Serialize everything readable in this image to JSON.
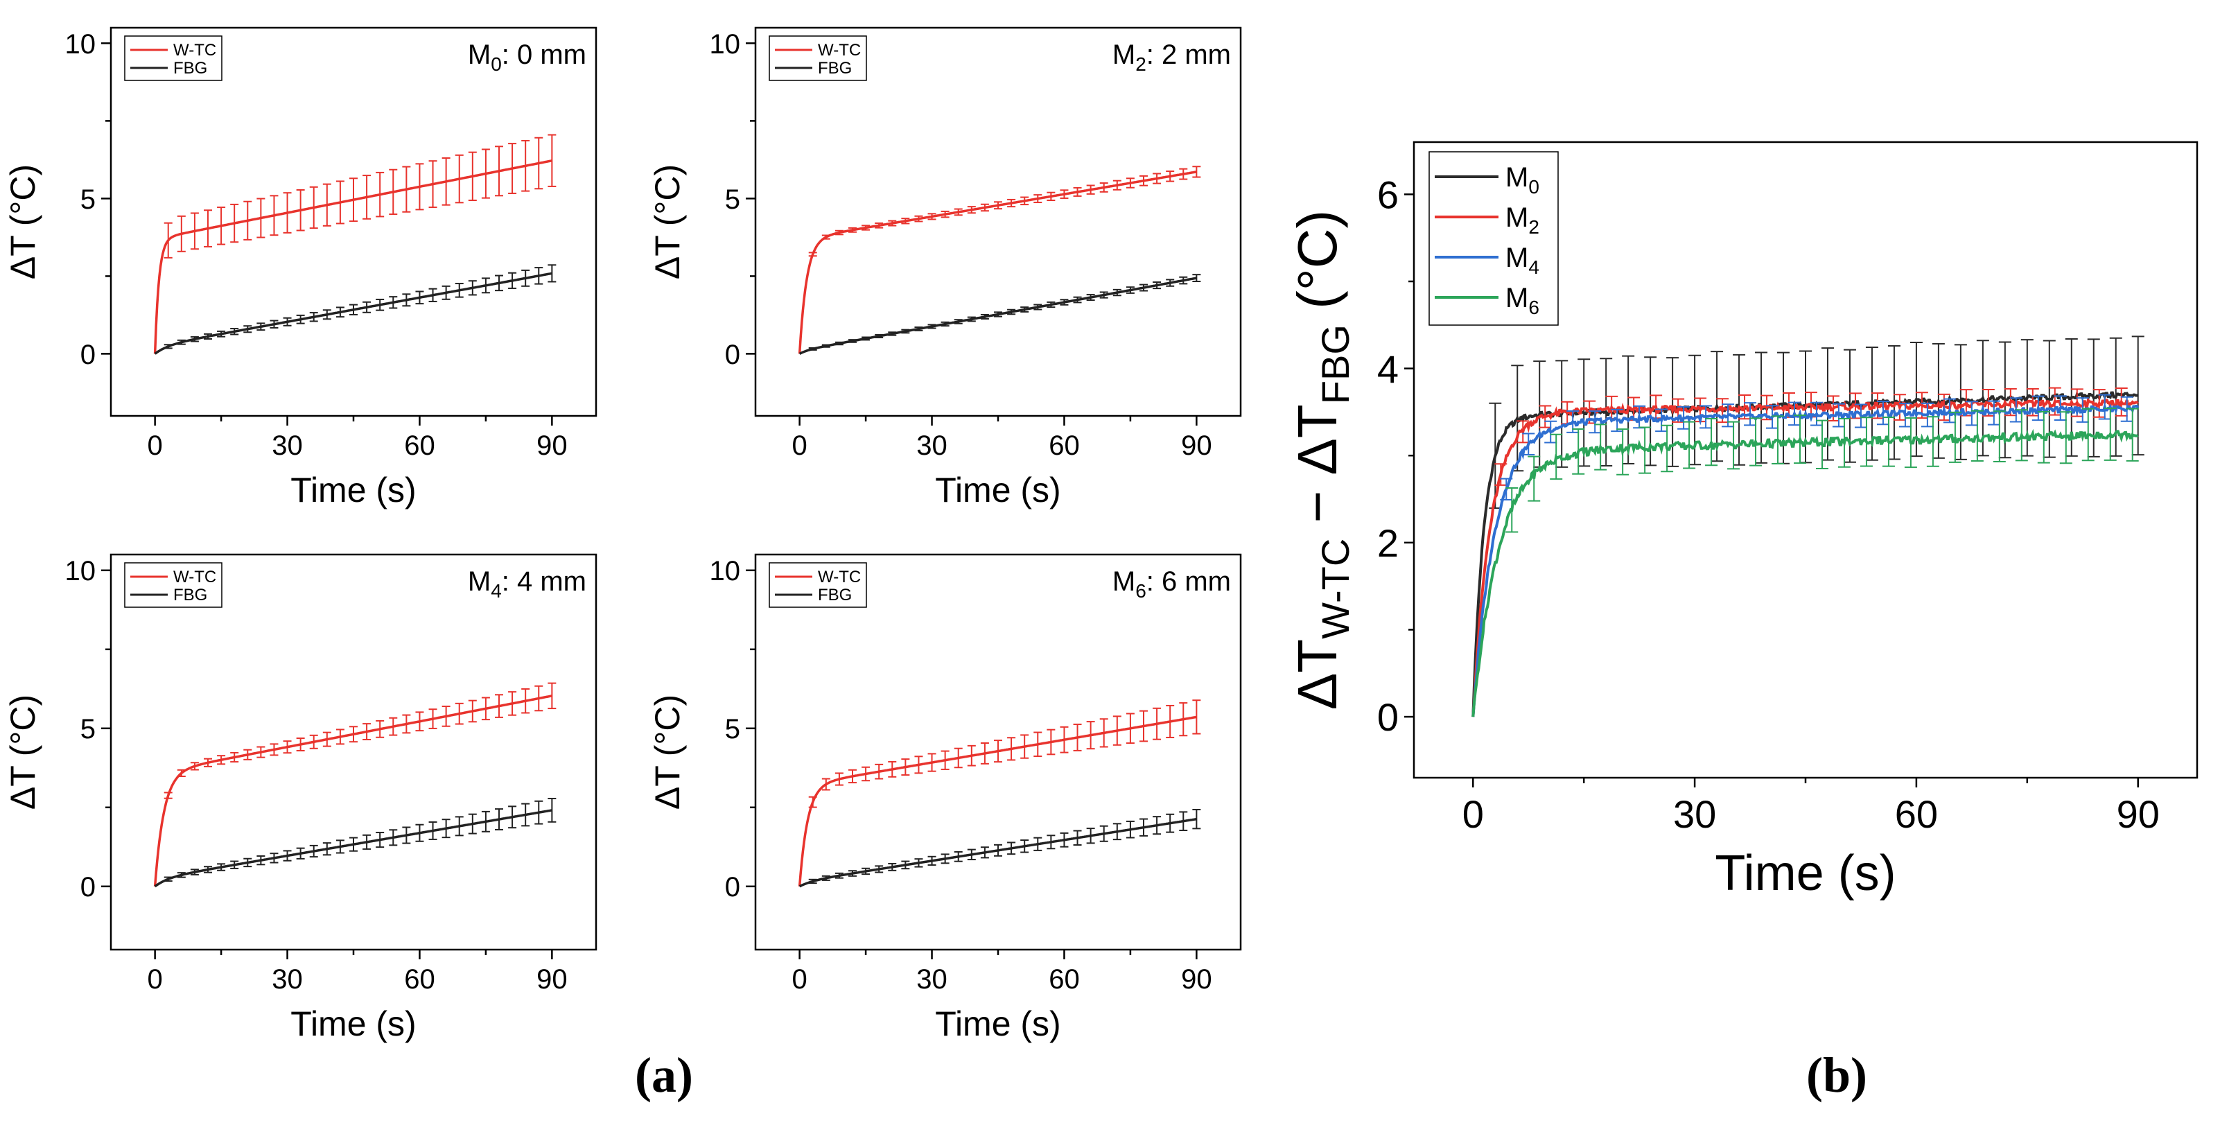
{
  "figure": {
    "panel_a_label": "(a)",
    "panel_b_label": "(b)"
  },
  "chart_data": [
    {
      "id": "a-m0",
      "type": "line",
      "panel": "(a)",
      "annotation": {
        "prefix": "M",
        "subscript": "0",
        "suffix": ": 0 mm"
      },
      "xlabel": "Time (s)",
      "ylabel": "ΔT (°C)",
      "xlim": [
        -10,
        100
      ],
      "ylim": [
        -2,
        10.5
      ],
      "xticks": [
        0,
        30,
        60,
        90
      ],
      "yticks": [
        0,
        5,
        10
      ],
      "legend": {
        "position": "top-left",
        "entries": [
          "W-TC",
          "FBG"
        ]
      },
      "series": [
        {
          "name": "W-TC",
          "color": "#e8332d",
          "plateau": 3.7,
          "slope": 0.028,
          "tau": 0.9,
          "err_base": 0.55,
          "err_growth": 0.28,
          "errorbars": "x"
        },
        {
          "name": "FBG",
          "color": "#222222",
          "plateau": 0.25,
          "slope": 0.026,
          "tau": 3.0,
          "err_base": 0.05,
          "err_growth": 0.22,
          "errorbars": "x"
        }
      ]
    },
    {
      "id": "a-m2",
      "type": "line",
      "panel": "(a)",
      "annotation": {
        "prefix": "M",
        "subscript": "2",
        "suffix": ": 2 mm"
      },
      "xlabel": "Time (s)",
      "ylabel": "ΔT (°C)",
      "xlim": [
        -10,
        100
      ],
      "ylim": [
        -2,
        10.5
      ],
      "xticks": [
        0,
        30,
        60,
        90
      ],
      "yticks": [
        0,
        5,
        10
      ],
      "legend": {
        "position": "top-left",
        "entries": [
          "W-TC",
          "FBG"
        ]
      },
      "series": [
        {
          "name": "W-TC",
          "color": "#e8332d",
          "plateau": 3.7,
          "slope": 0.024,
          "tau": 1.6,
          "err_base": 0.05,
          "err_growth": 0.12,
          "errorbars": "x"
        },
        {
          "name": "FBG",
          "color": "#222222",
          "plateau": 0.1,
          "slope": 0.026,
          "tau": 2.0,
          "err_base": 0.03,
          "err_growth": 0.08,
          "errorbars": "x"
        }
      ]
    },
    {
      "id": "a-m4",
      "type": "line",
      "panel": "(a)",
      "annotation": {
        "prefix": "M",
        "subscript": "4",
        "suffix": ": 4 mm"
      },
      "xlabel": "Time (s)",
      "ylabel": "ΔT (°C)",
      "xlim": [
        -10,
        100
      ],
      "ylim": [
        -2,
        10.5
      ],
      "xticks": [
        0,
        30,
        60,
        90
      ],
      "yticks": [
        0,
        5,
        10
      ],
      "legend": {
        "position": "top-left",
        "entries": [
          "W-TC",
          "FBG"
        ]
      },
      "series": [
        {
          "name": "W-TC",
          "color": "#e8332d",
          "plateau": 3.6,
          "slope": 0.027,
          "tau": 2.0,
          "err_base": 0.08,
          "err_growth": 0.32,
          "errorbars": "x"
        },
        {
          "name": "FBG",
          "color": "#222222",
          "plateau": 0.25,
          "slope": 0.024,
          "tau": 3.0,
          "err_base": 0.05,
          "err_growth": 0.32,
          "errorbars": "x"
        }
      ]
    },
    {
      "id": "a-m6",
      "type": "line",
      "panel": "(a)",
      "annotation": {
        "prefix": "M",
        "subscript": "6",
        "suffix": ": 6 mm"
      },
      "xlabel": "Time (s)",
      "ylabel": "ΔT (°C)",
      "xlim": [
        -10,
        100
      ],
      "ylim": [
        -2,
        10.5
      ],
      "xticks": [
        0,
        30,
        60,
        90
      ],
      "yticks": [
        0,
        5,
        10
      ],
      "legend": {
        "position": "top-left",
        "entries": [
          "W-TC",
          "FBG"
        ]
      },
      "series": [
        {
          "name": "W-TC",
          "color": "#e8332d",
          "plateau": 3.2,
          "slope": 0.024,
          "tau": 1.8,
          "err_base": 0.15,
          "err_growth": 0.38,
          "errorbars": "x"
        },
        {
          "name": "FBG",
          "color": "#222222",
          "plateau": 0.15,
          "slope": 0.022,
          "tau": 3.0,
          "err_base": 0.05,
          "err_growth": 0.25,
          "errorbars": "x"
        }
      ]
    },
    {
      "id": "b",
      "type": "line",
      "panel": "(b)",
      "xlabel": "Time (s)",
      "ylabel": {
        "delta": "ΔT",
        "sub1": "W-TC",
        "minus": " − ",
        "delta2": "ΔT",
        "sub2": "FBG",
        "unit": " (°C)"
      },
      "xlim": [
        -8,
        98
      ],
      "ylim": [
        -0.7,
        6.6
      ],
      "xticks": [
        0,
        30,
        60,
        90
      ],
      "yticks": [
        0,
        2,
        4,
        6
      ],
      "legend": {
        "position": "top-left",
        "entries": [
          {
            "prefix": "M",
            "subscript": "0"
          },
          {
            "prefix": "M",
            "subscript": "2"
          },
          {
            "prefix": "M",
            "subscript": "4"
          },
          {
            "prefix": "M",
            "subscript": "6"
          }
        ]
      },
      "series": [
        {
          "name": "M0",
          "color": "#2b2b2b",
          "plateau": 3.45,
          "slope": 0.0028,
          "tau": 1.5,
          "err_base": 0.6,
          "err_growth": 0.08,
          "errorbars": "line",
          "noise": 0.03
        },
        {
          "name": "M2",
          "color": "#e8332d",
          "plateau": 3.5,
          "slope": 0.0012,
          "tau": 2.4,
          "err_base": 0.12,
          "err_growth": 0.04,
          "errorbars": "line",
          "noise": 0.035
        },
        {
          "name": "M4",
          "color": "#2f6fd1",
          "plateau": 3.38,
          "slope": 0.0018,
          "tau": 3.0,
          "err_base": 0.12,
          "err_growth": 0.02,
          "errorbars": "line",
          "noise": 0.03
        },
        {
          "name": "M6",
          "color": "#2ca55a",
          "plateau": 3.05,
          "slope": 0.0022,
          "tau": 3.5,
          "err_base": 0.25,
          "err_growth": 0.05,
          "errorbars": "line",
          "noise": 0.045
        }
      ]
    }
  ]
}
